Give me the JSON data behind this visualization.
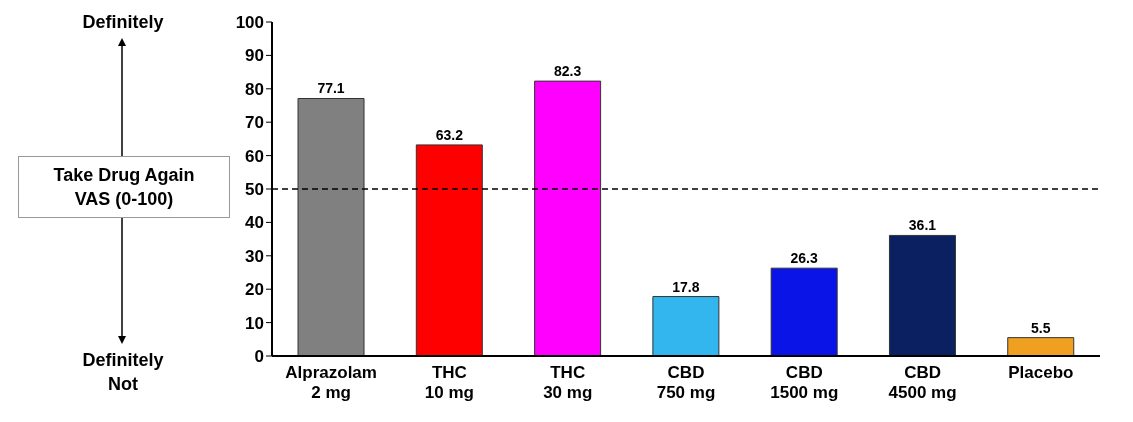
{
  "chart_data": {
    "type": "bar",
    "ylabel": "Take Drug Again VAS (0-100)",
    "annotations": [
      "Definitely",
      "Definitely Not"
    ],
    "categories": [
      "Alprazolam\n2 mg",
      "THC\n10 mg",
      "THC\n30 mg",
      "CBD\n750 mg",
      "CBD\n1500 mg",
      "CBD\n4500 mg",
      "Placebo"
    ],
    "values": [
      77.1,
      63.2,
      82.3,
      17.8,
      26.3,
      36.1,
      5.5
    ],
    "colors": [
      "#808080",
      "#ff0000",
      "#ff00ff",
      "#33b5ee",
      "#0a14e6",
      "#0a2060",
      "#f0a020"
    ],
    "ylim": [
      0,
      100
    ],
    "yticks": [
      0,
      10,
      20,
      30,
      40,
      50,
      60,
      70,
      80,
      90,
      100
    ],
    "ref_lines": [
      {
        "axis": "y",
        "value": 50,
        "line_style": "dashed",
        "color": "#000000"
      }
    ],
    "data_labels": true,
    "grid": false,
    "legend": false
  }
}
